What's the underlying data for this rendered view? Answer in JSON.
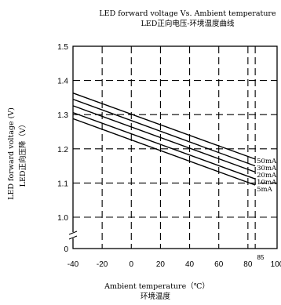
{
  "chart_data": {
    "type": "line",
    "title": "LED forward voltage Vs. Ambient temperature",
    "subtitle": "LED正向电压-环境温度曲线",
    "xlabel": "Ambient temperature（℃）",
    "xlabel_cn": "环境温度",
    "ylabel": "LED forward voltage (V)",
    "ylabel_cn": "LED正向压降（V）",
    "xlim": [
      -40,
      100
    ],
    "ylim": [
      0,
      1.5
    ],
    "x_ticks": [
      -40,
      -20,
      0,
      20,
      40,
      60,
      80,
      100
    ],
    "x_tick_labels": [
      "-40",
      "-20",
      "0",
      "20",
      "40",
      "60",
      "80",
      "100"
    ],
    "x_marker": {
      "value": 85,
      "label": "85"
    },
    "y_ticks": [
      0,
      1.0,
      1.1,
      1.2,
      1.3,
      1.4,
      1.5
    ],
    "y_tick_labels": [
      "0",
      "1.0",
      "1.1",
      "1.2",
      "1.3",
      "1.4",
      "1.5"
    ],
    "y_axis_break": true,
    "grid": true,
    "grid_style": "dashed",
    "line_color": "#000000",
    "series": [
      {
        "name": "50mA",
        "x": [
          -40,
          85
        ],
        "y": [
          1.363,
          1.17
        ]
      },
      {
        "name": "30mA",
        "x": [
          -40,
          85
        ],
        "y": [
          1.345,
          1.15
        ]
      },
      {
        "name": "20mA",
        "x": [
          -40,
          85
        ],
        "y": [
          1.326,
          1.132
        ]
      },
      {
        "name": "10mA",
        "x": [
          -40,
          85
        ],
        "y": [
          1.306,
          1.112
        ]
      },
      {
        "name": "5mA",
        "x": [
          -40,
          85
        ],
        "y": [
          1.288,
          1.094
        ]
      }
    ]
  }
}
